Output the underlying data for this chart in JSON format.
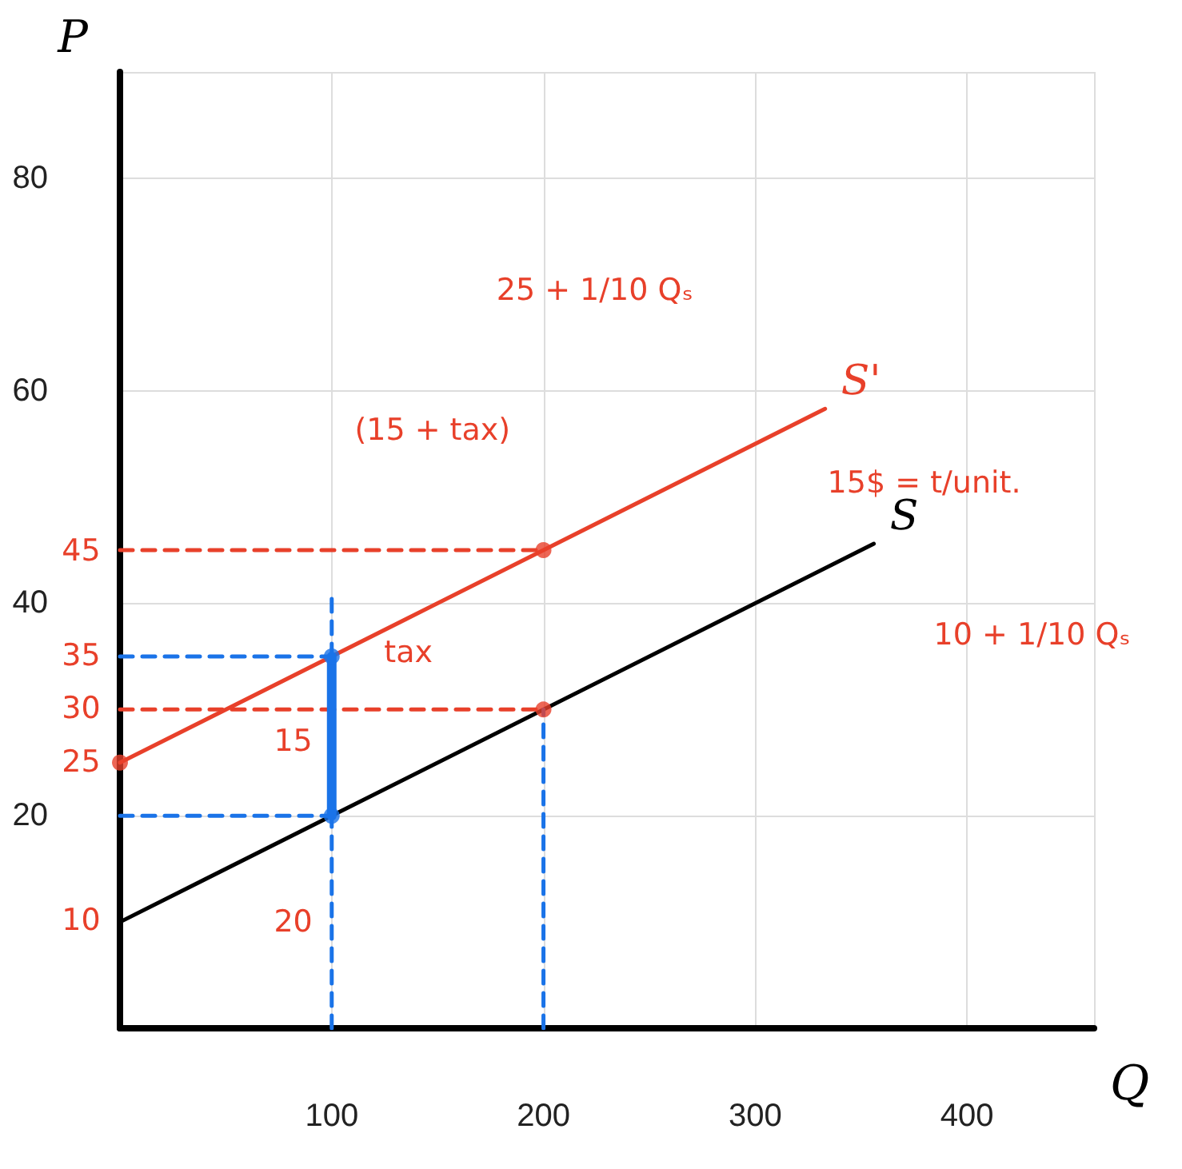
{
  "chart_data": {
    "type": "line",
    "xlabel": "Q",
    "ylabel": "P",
    "xlim": [
      0,
      460
    ],
    "ylim": [
      0,
      90
    ],
    "xticks": [
      100,
      200,
      300,
      400
    ],
    "yticks": [
      20,
      40,
      60,
      80
    ],
    "grid": true,
    "legend": false,
    "marker": "none",
    "line_style": "solid",
    "series": [
      {
        "name": "S",
        "color": "#000000",
        "x": [
          0,
          356
        ],
        "values": [
          10,
          45.6
        ]
      },
      {
        "name": "S'",
        "color": "#e8402a",
        "x": [
          0,
          333
        ],
        "values": [
          25,
          58.3
        ]
      },
      {
        "color": "#e8402a",
        "line_style": "dashed",
        "x": [
          0,
          200
        ],
        "values": [
          45,
          45
        ]
      },
      {
        "color": "#e8402a",
        "line_style": "dashed",
        "x": [
          0,
          200
        ],
        "values": [
          30,
          30
        ]
      },
      {
        "color": "#1a73e8",
        "line_style": "dashed",
        "x": [
          0,
          100
        ],
        "values": [
          35,
          35
        ]
      },
      {
        "color": "#1a73e8",
        "line_style": "dashed",
        "x": [
          0,
          100
        ],
        "values": [
          20,
          20
        ]
      },
      {
        "color": "#1a73e8",
        "line_style": "dashed",
        "x": [
          100,
          100
        ],
        "values": [
          0,
          20
        ]
      },
      {
        "color": "#1a73e8",
        "line_style": "dashed",
        "x": [
          100,
          100
        ],
        "values": [
          35,
          41
        ]
      },
      {
        "color": "#1a73e8",
        "line_style": "dashed",
        "x": [
          200,
          200
        ],
        "values": [
          0,
          30
        ]
      },
      {
        "color": "#1a73e8",
        "x": [
          100,
          100
        ],
        "values": [
          20,
          35
        ]
      },
      {
        "type": "scatter",
        "marker": "circle",
        "color": "#e8402a",
        "x": [
          0,
          200,
          200
        ],
        "values": [
          25,
          45,
          30
        ]
      },
      {
        "type": "scatter",
        "marker": "circle",
        "color": "#1a73e8",
        "x": [
          100,
          100
        ],
        "values": [
          35,
          20
        ]
      }
    ],
    "annotations": [
      "45",
      "35",
      "30",
      "25",
      "10",
      {
        "text": "20",
        "x": 100,
        "y": 10
      },
      {
        "text": "15",
        "x": 100,
        "y": 27
      },
      "tax",
      "25 + 1/10 Qₛ",
      "(15 + tax)",
      "15$ = t/unit.",
      "10 + 1/10 Qₛ"
    ]
  }
}
